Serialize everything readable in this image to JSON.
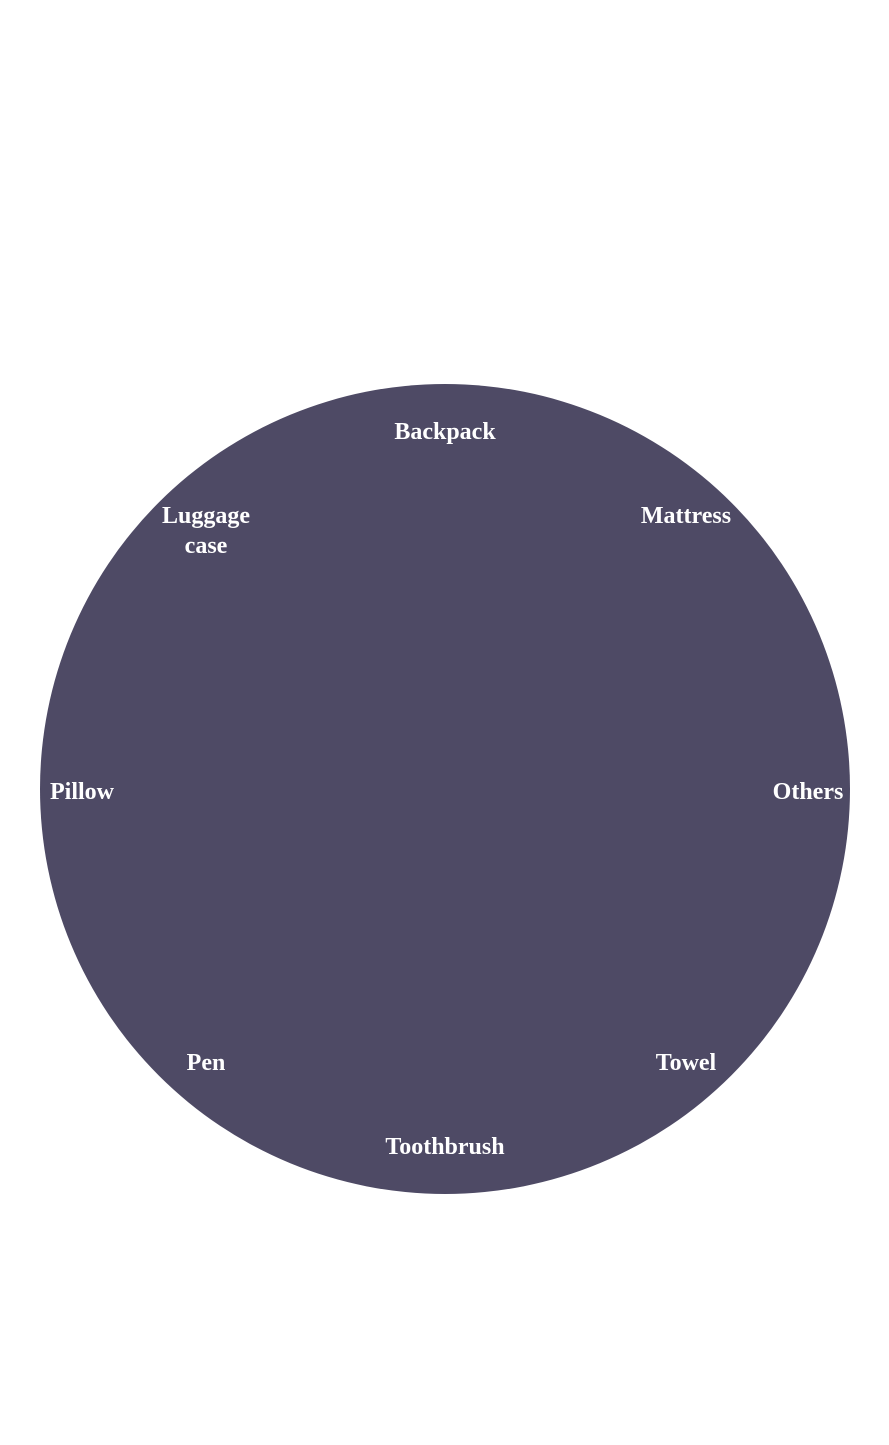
{
  "diagram": {
    "fill_color": "#4e4a65",
    "label_color": "#ffffff",
    "segments": [
      {
        "label": "Backpack"
      },
      {
        "label": "Mattress"
      },
      {
        "label": "Others"
      },
      {
        "label": "Towel"
      },
      {
        "label": "Toothbrush"
      },
      {
        "label": "Pen"
      },
      {
        "label": "Pillow"
      },
      {
        "label": "Luggage case"
      }
    ]
  }
}
